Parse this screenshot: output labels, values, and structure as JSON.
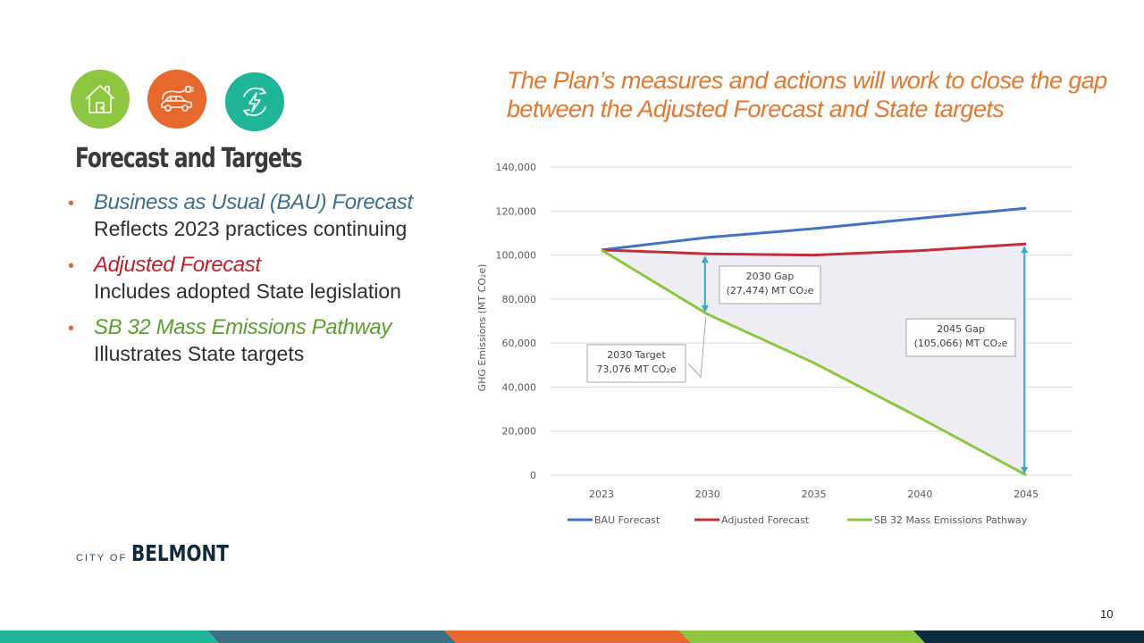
{
  "icons": [
    {
      "name": "home-icon",
      "color": "#8dc63f"
    },
    {
      "name": "electric-car-icon",
      "color": "#e8672c"
    },
    {
      "name": "renewable-energy-icon",
      "color": "#1fb597"
    }
  ],
  "section_title": "Forecast and Targets",
  "bullets": [
    {
      "heading": "Business as Usual (BAU) Forecast",
      "description": "Reflects 2023 practices continuing",
      "color": "#3c6e8f"
    },
    {
      "heading": "Adjusted Forecast",
      "description": "Includes adopted State legislation",
      "color": "#c0202c"
    },
    {
      "heading": "SB 32 Mass Emissions Pathway",
      "description": "Illustrates State targets",
      "color": "#5aa02c"
    }
  ],
  "callout": "The Plan’s measures and actions will work to close the gap between the Adjusted Forecast and State targets",
  "logo": {
    "prefix": "CITY OF",
    "name": "BELMONT"
  },
  "page_number": "10",
  "footer_colors": [
    "#1fb597",
    "#3c6e84",
    "#e8672c",
    "#8dc63f",
    "#0e2a3d"
  ],
  "chart_data": {
    "type": "line",
    "title": "",
    "xlabel": "",
    "ylabel": "GHG Emissions (MT CO₂e)",
    "categories": [
      "2023",
      "2030",
      "2035",
      "2040",
      "2045"
    ],
    "ylim": [
      0,
      140000
    ],
    "yticks": [
      0,
      20000,
      40000,
      60000,
      80000,
      100000,
      120000,
      140000
    ],
    "ytick_labels": [
      "0",
      "20,000",
      "40,000",
      "60,000",
      "80,000",
      "100,000",
      "120,000",
      "140,000"
    ],
    "grid": true,
    "legend_position": "bottom",
    "series": [
      {
        "name": "BAU Forecast",
        "color": "#4472c4",
        "values": [
          102300,
          108000,
          112000,
          116700,
          121300
        ]
      },
      {
        "name": "Adjusted Forecast",
        "color": "#c0303c",
        "values": [
          102300,
          100550,
          100000,
          102000,
          105066
        ]
      },
      {
        "name": "SB 32 Mass Emissions Pathway",
        "color": "#8dc63f",
        "values": [
          102300,
          73076,
          51000,
          26000,
          0
        ]
      }
    ],
    "gap_fill_color": "#ededf3",
    "arrow_color": "#3fa9c4",
    "annotations": [
      {
        "id": "gap-2030",
        "line1": "2030 Gap",
        "line2": "(27,474) MT CO₂e",
        "category": "2030"
      },
      {
        "id": "target-2030",
        "line1": "2030 Target",
        "line2": "73,076 MT CO₂e",
        "category": "2030"
      },
      {
        "id": "gap-2045",
        "line1": "2045 Gap",
        "line2": "(105,066) MT CO₂e",
        "category": "2045"
      }
    ]
  }
}
